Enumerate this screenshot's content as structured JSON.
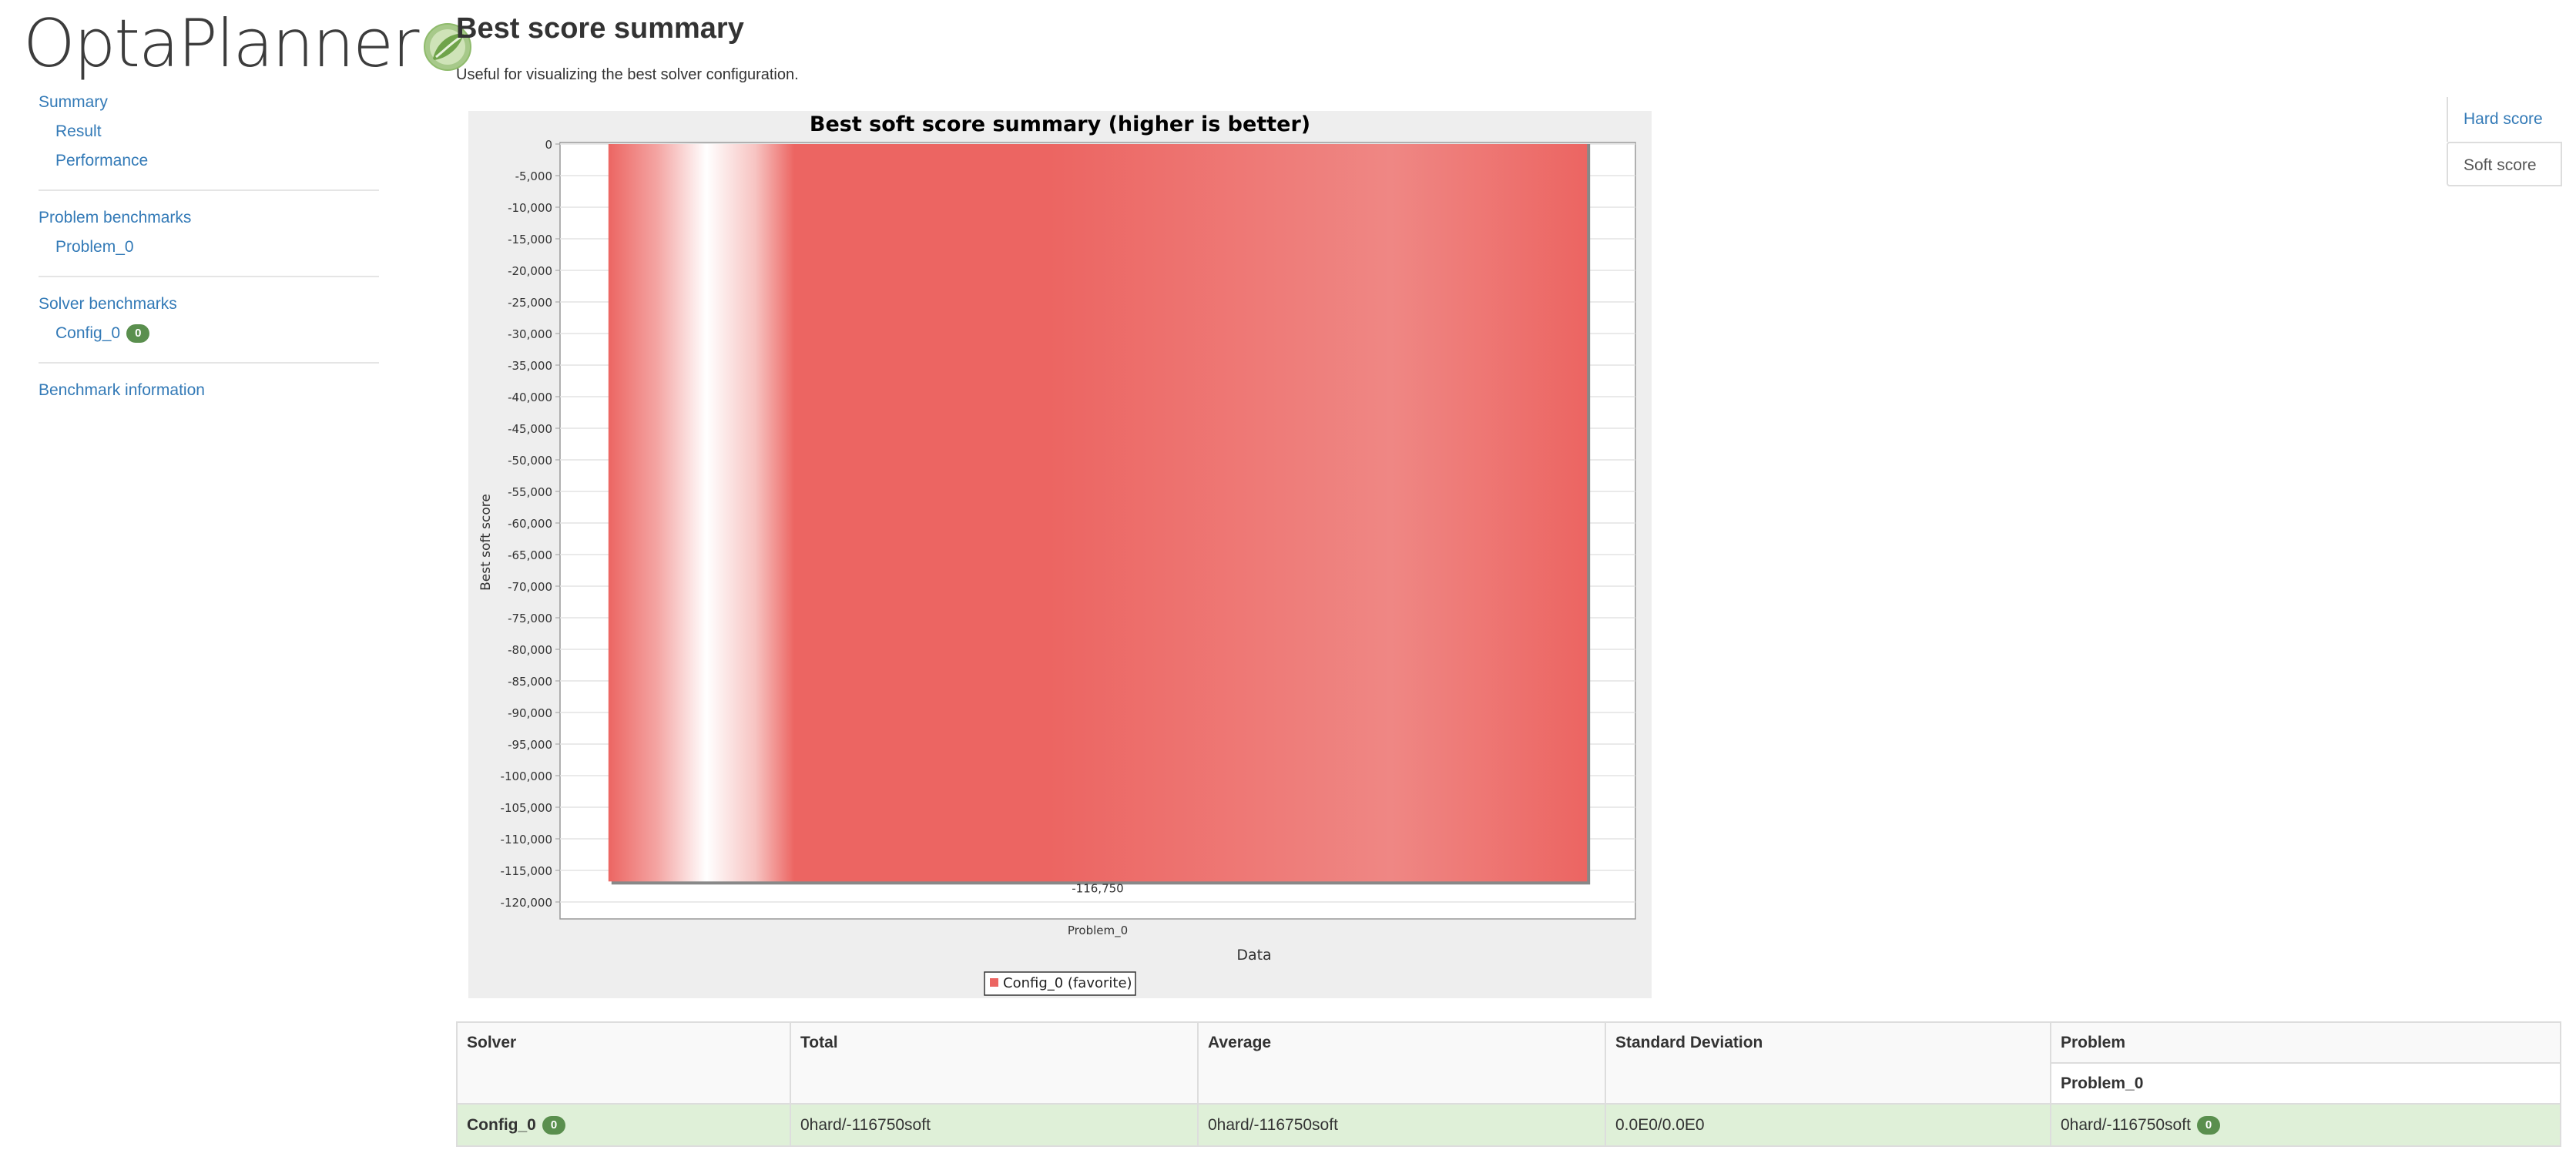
{
  "app": {
    "logo_text": "OptaPlanner"
  },
  "sidebar": {
    "summary": "Summary",
    "result": "Result",
    "performance": "Performance",
    "problem_benchmarks": "Problem benchmarks",
    "problem_0": "Problem_0",
    "solver_benchmarks": "Solver benchmarks",
    "config_0": "Config_0",
    "config_0_badge": "0",
    "benchmark_information": "Benchmark information"
  },
  "page": {
    "title": "Best score summary",
    "description": "Useful for visualizing the best solver configuration."
  },
  "tabs": {
    "hard": "Hard score",
    "soft": "Soft score",
    "active": "Soft score"
  },
  "chart_data": {
    "type": "bar",
    "title": "Best soft score summary (higher is better)",
    "xlabel": "Data",
    "ylabel": "Best soft score",
    "categories": [
      "Problem_0"
    ],
    "series": [
      {
        "name": "Config_0 (favorite)",
        "values": [
          -116750
        ]
      }
    ],
    "data_labels": [
      "-116,750"
    ],
    "ylim": [
      -120000,
      0
    ],
    "ytick_step": 5000,
    "yticks": [
      "0",
      "-5,000",
      "-10,000",
      "-15,000",
      "-20,000",
      "-25,000",
      "-30,000",
      "-35,000",
      "-40,000",
      "-45,000",
      "-50,000",
      "-55,000",
      "-60,000",
      "-65,000",
      "-70,000",
      "-75,000",
      "-80,000",
      "-85,000",
      "-90,000",
      "-95,000",
      "-100,000",
      "-105,000",
      "-110,000",
      "-115,000",
      "-120,000"
    ],
    "grid": true,
    "legend": "bottom",
    "colors": {
      "bar": "#ec6562",
      "background": "#eeeeee",
      "plot": "#ffffff"
    }
  },
  "table": {
    "headers": {
      "solver": "Solver",
      "total": "Total",
      "average": "Average",
      "std": "Standard Deviation",
      "problem": "Problem"
    },
    "problem_sub": "Problem_0",
    "rows": [
      {
        "solver": "Config_0",
        "badge": "0",
        "total": "0hard/-116750soft",
        "average": "0hard/-116750soft",
        "std": "0.0E0/0.0E0",
        "problem_0": "0hard/-116750soft",
        "problem_badge": "0"
      }
    ]
  }
}
